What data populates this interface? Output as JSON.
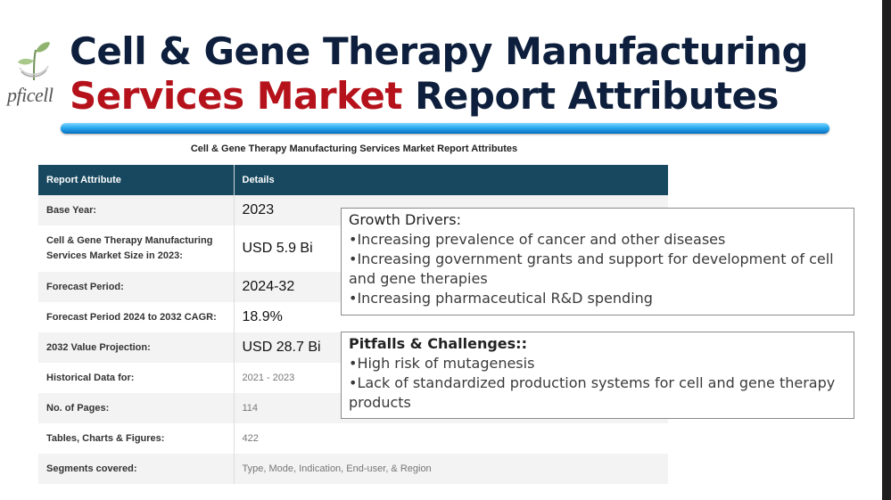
{
  "logo": {
    "text": "pficell",
    "icon": "leaf-sprout-icon"
  },
  "title": {
    "line1": "Cell & Gene Therapy Manufacturing",
    "accent": "Services Market",
    "rest": " Report Attributes"
  },
  "table": {
    "caption": "Cell & Gene Therapy Manufacturing Services Market Report Attributes",
    "headers": [
      "Report Attribute",
      "Details"
    ],
    "rows": [
      {
        "attribute": "Base Year:",
        "detail": "2023"
      },
      {
        "attribute": "Cell & Gene Therapy Manufacturing Services Market Size in 2023:",
        "detail": "USD 5.9 Bi"
      },
      {
        "attribute": "Forecast Period:",
        "detail": "2024-32"
      },
      {
        "attribute": "Forecast Period 2024 to 2032 CAGR:",
        "detail": "18.9%"
      },
      {
        "attribute": "2032 Value Projection:",
        "detail": "USD 28.7 Bi"
      },
      {
        "attribute": "Historical Data for:",
        "detail": "2021 - 2023"
      },
      {
        "attribute": "No. of Pages:",
        "detail": "114"
      },
      {
        "attribute": "Tables, Charts & Figures:",
        "detail": "422"
      },
      {
        "attribute": "Segments covered:",
        "detail": "Type, Mode, Indication, End-user, & Region"
      }
    ]
  },
  "growth": {
    "heading": "Growth Drivers:",
    "items": [
      "•Increasing prevalence of cancer and other diseases",
      "•Increasing government grants and support for development of cell and gene therapies",
      "•Increasing pharmaceutical R&D spending"
    ]
  },
  "pitfalls": {
    "heading": "Pitfalls & Challenges::",
    "items": [
      "•High risk of mutagenesis",
      "•Lack of standardized production systems for cell and gene therapy products"
    ]
  },
  "colors": {
    "title": "#0d1f3c",
    "accent": "#b5121b",
    "table_header": "#17485f",
    "bar": "#29a9f0"
  }
}
